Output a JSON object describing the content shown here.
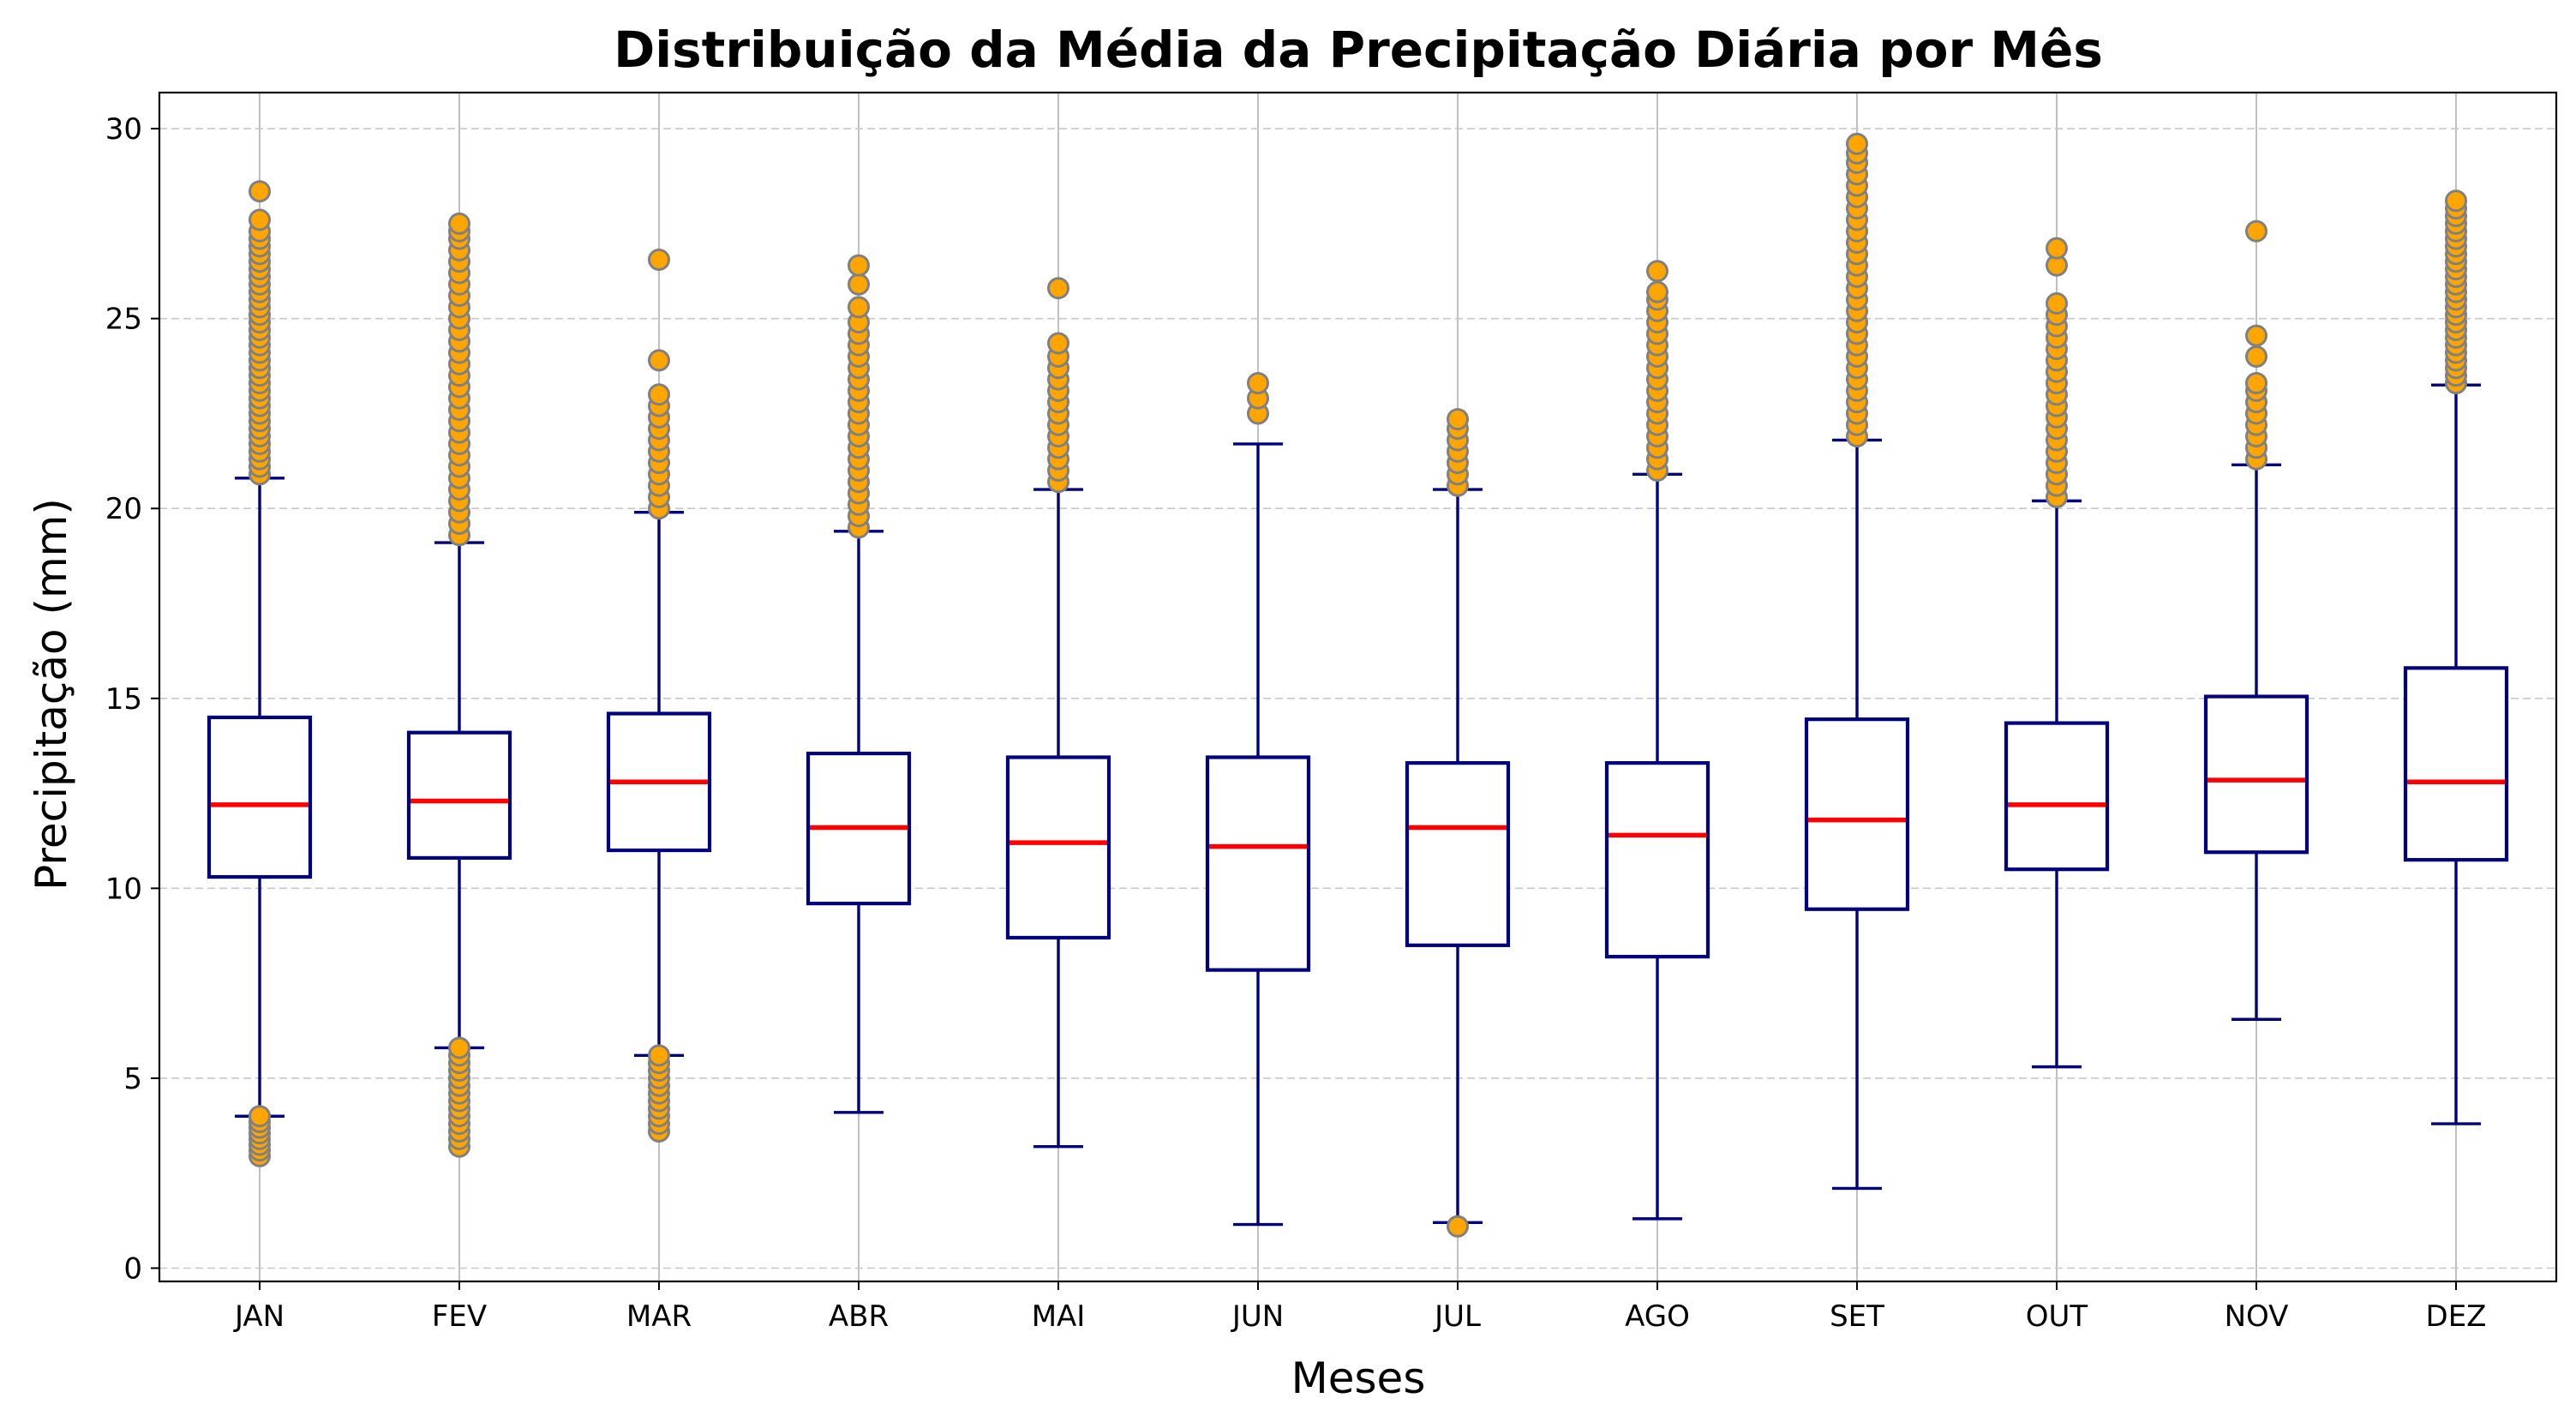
{
  "chart_data": {
    "type": "box",
    "title": "Distribuição da Média da Precipitação Diária por Mês",
    "xlabel": "Meses",
    "ylabel": "Precipitação (mm)",
    "ylim": [
      -0.35,
      30.95
    ],
    "yticks": [
      0,
      5,
      10,
      15,
      20,
      25,
      30
    ],
    "grid": {
      "x": "solid",
      "y": "dashed"
    },
    "categories": [
      "JAN",
      "FEV",
      "MAR",
      "ABR",
      "MAI",
      "JUN",
      "JUL",
      "AGO",
      "SET",
      "OUT",
      "NOV",
      "DEZ"
    ],
    "boxes": [
      {
        "q1": 10.3,
        "median": 12.2,
        "q3": 14.5,
        "whisker_low": 4.0,
        "whisker_high": 20.8,
        "outliers": [
          2.95,
          3.1,
          3.25,
          3.4,
          3.55,
          3.7,
          3.85,
          4.0,
          20.9,
          21.1,
          21.3,
          21.5,
          21.7,
          21.9,
          22.1,
          22.3,
          22.5,
          22.7,
          22.9,
          23.1,
          23.3,
          23.5,
          23.7,
          23.9,
          24.1,
          24.3,
          24.5,
          24.7,
          24.9,
          25.1,
          25.3,
          25.5,
          25.7,
          25.9,
          26.1,
          26.3,
          26.5,
          26.7,
          26.9,
          27.1,
          27.3,
          27.6,
          28.35
        ]
      },
      {
        "q1": 10.8,
        "median": 12.3,
        "q3": 14.1,
        "whisker_low": 5.8,
        "whisker_high": 19.1,
        "outliers": [
          3.2,
          3.4,
          3.6,
          3.8,
          4.0,
          4.2,
          4.4,
          4.6,
          4.8,
          5.0,
          5.2,
          5.4,
          5.6,
          5.8,
          19.3,
          19.6,
          19.9,
          20.2,
          20.5,
          20.8,
          21.1,
          21.4,
          21.7,
          22.0,
          22.3,
          22.6,
          22.9,
          23.2,
          23.5,
          23.8,
          24.1,
          24.4,
          24.7,
          25.0,
          25.3,
          25.6,
          25.9,
          26.2,
          26.5,
          26.8,
          27.1,
          27.3,
          27.5
        ]
      },
      {
        "q1": 11.0,
        "median": 12.8,
        "q3": 14.6,
        "whisker_low": 5.6,
        "whisker_high": 19.9,
        "outliers": [
          3.6,
          3.8,
          4.0,
          4.2,
          4.4,
          4.6,
          4.8,
          5.0,
          5.2,
          5.4,
          5.6,
          20.0,
          20.3,
          20.6,
          20.9,
          21.2,
          21.5,
          21.8,
          22.1,
          22.4,
          22.7,
          23.0,
          23.9,
          26.55
        ]
      },
      {
        "q1": 9.6,
        "median": 11.6,
        "q3": 13.55,
        "whisker_low": 4.1,
        "whisker_high": 19.4,
        "outliers": [
          19.5,
          19.8,
          20.1,
          20.4,
          20.7,
          21.0,
          21.3,
          21.6,
          21.9,
          22.2,
          22.5,
          22.8,
          23.1,
          23.4,
          23.7,
          24.0,
          24.3,
          24.6,
          24.9,
          25.3,
          25.9,
          26.4
        ]
      },
      {
        "q1": 8.7,
        "median": 11.2,
        "q3": 13.45,
        "whisker_low": 3.2,
        "whisker_high": 20.5,
        "outliers": [
          20.7,
          21.0,
          21.3,
          21.6,
          21.9,
          22.2,
          22.5,
          22.8,
          23.1,
          23.4,
          23.7,
          24.0,
          24.35,
          25.8
        ]
      },
      {
        "q1": 7.85,
        "median": 11.1,
        "q3": 13.45,
        "whisker_low": 1.15,
        "whisker_high": 21.7,
        "outliers": [
          22.5,
          22.9,
          23.3
        ]
      },
      {
        "q1": 8.5,
        "median": 11.6,
        "q3": 13.3,
        "whisker_low": 1.2,
        "whisker_high": 20.5,
        "outliers": [
          1.1,
          20.6,
          20.9,
          21.2,
          21.5,
          21.8,
          22.1,
          22.35
        ]
      },
      {
        "q1": 8.2,
        "median": 11.4,
        "q3": 13.3,
        "whisker_low": 1.3,
        "whisker_high": 20.9,
        "outliers": [
          21.0,
          21.3,
          21.6,
          21.9,
          22.2,
          22.5,
          22.8,
          23.1,
          23.4,
          23.7,
          24.0,
          24.3,
          24.6,
          24.9,
          25.2,
          25.5,
          25.7,
          26.25
        ]
      },
      {
        "q1": 9.45,
        "median": 11.8,
        "q3": 14.45,
        "whisker_low": 2.1,
        "whisker_high": 21.8,
        "outliers": [
          21.9,
          22.2,
          22.5,
          22.8,
          23.1,
          23.4,
          23.7,
          24.0,
          24.3,
          24.6,
          24.9,
          25.2,
          25.5,
          25.8,
          26.1,
          26.4,
          26.7,
          27.0,
          27.3,
          27.6,
          27.9,
          28.2,
          28.5,
          28.8,
          29.1,
          29.35,
          29.6
        ]
      },
      {
        "q1": 10.5,
        "median": 12.2,
        "q3": 14.35,
        "whisker_low": 5.3,
        "whisker_high": 20.2,
        "outliers": [
          20.3,
          20.6,
          20.9,
          21.2,
          21.5,
          21.8,
          22.1,
          22.4,
          22.7,
          23.0,
          23.3,
          23.6,
          23.9,
          24.2,
          24.5,
          24.8,
          25.1,
          25.4,
          26.4,
          26.85
        ]
      },
      {
        "q1": 10.95,
        "median": 12.85,
        "q3": 15.05,
        "whisker_low": 6.55,
        "whisker_high": 21.15,
        "outliers": [
          21.3,
          21.6,
          21.9,
          22.2,
          22.5,
          22.8,
          23.1,
          23.3,
          24.0,
          24.55,
          27.3
        ]
      },
      {
        "q1": 10.75,
        "median": 12.8,
        "q3": 15.8,
        "whisker_low": 3.8,
        "whisker_high": 23.25,
        "outliers": [
          23.3,
          23.5,
          23.7,
          23.9,
          24.1,
          24.3,
          24.5,
          24.7,
          24.9,
          25.1,
          25.3,
          25.5,
          25.7,
          25.9,
          26.1,
          26.3,
          26.5,
          26.7,
          26.9,
          27.1,
          27.3,
          27.5,
          27.7,
          27.9,
          28.1
        ]
      }
    ],
    "colors": {
      "box": "#00007f",
      "median": "#ff0000",
      "outlier_fill": "#ffa500",
      "outlier_edge": "#808080",
      "grid": "#b0b0b0",
      "grid_dashed": "#c8c8c8"
    }
  }
}
